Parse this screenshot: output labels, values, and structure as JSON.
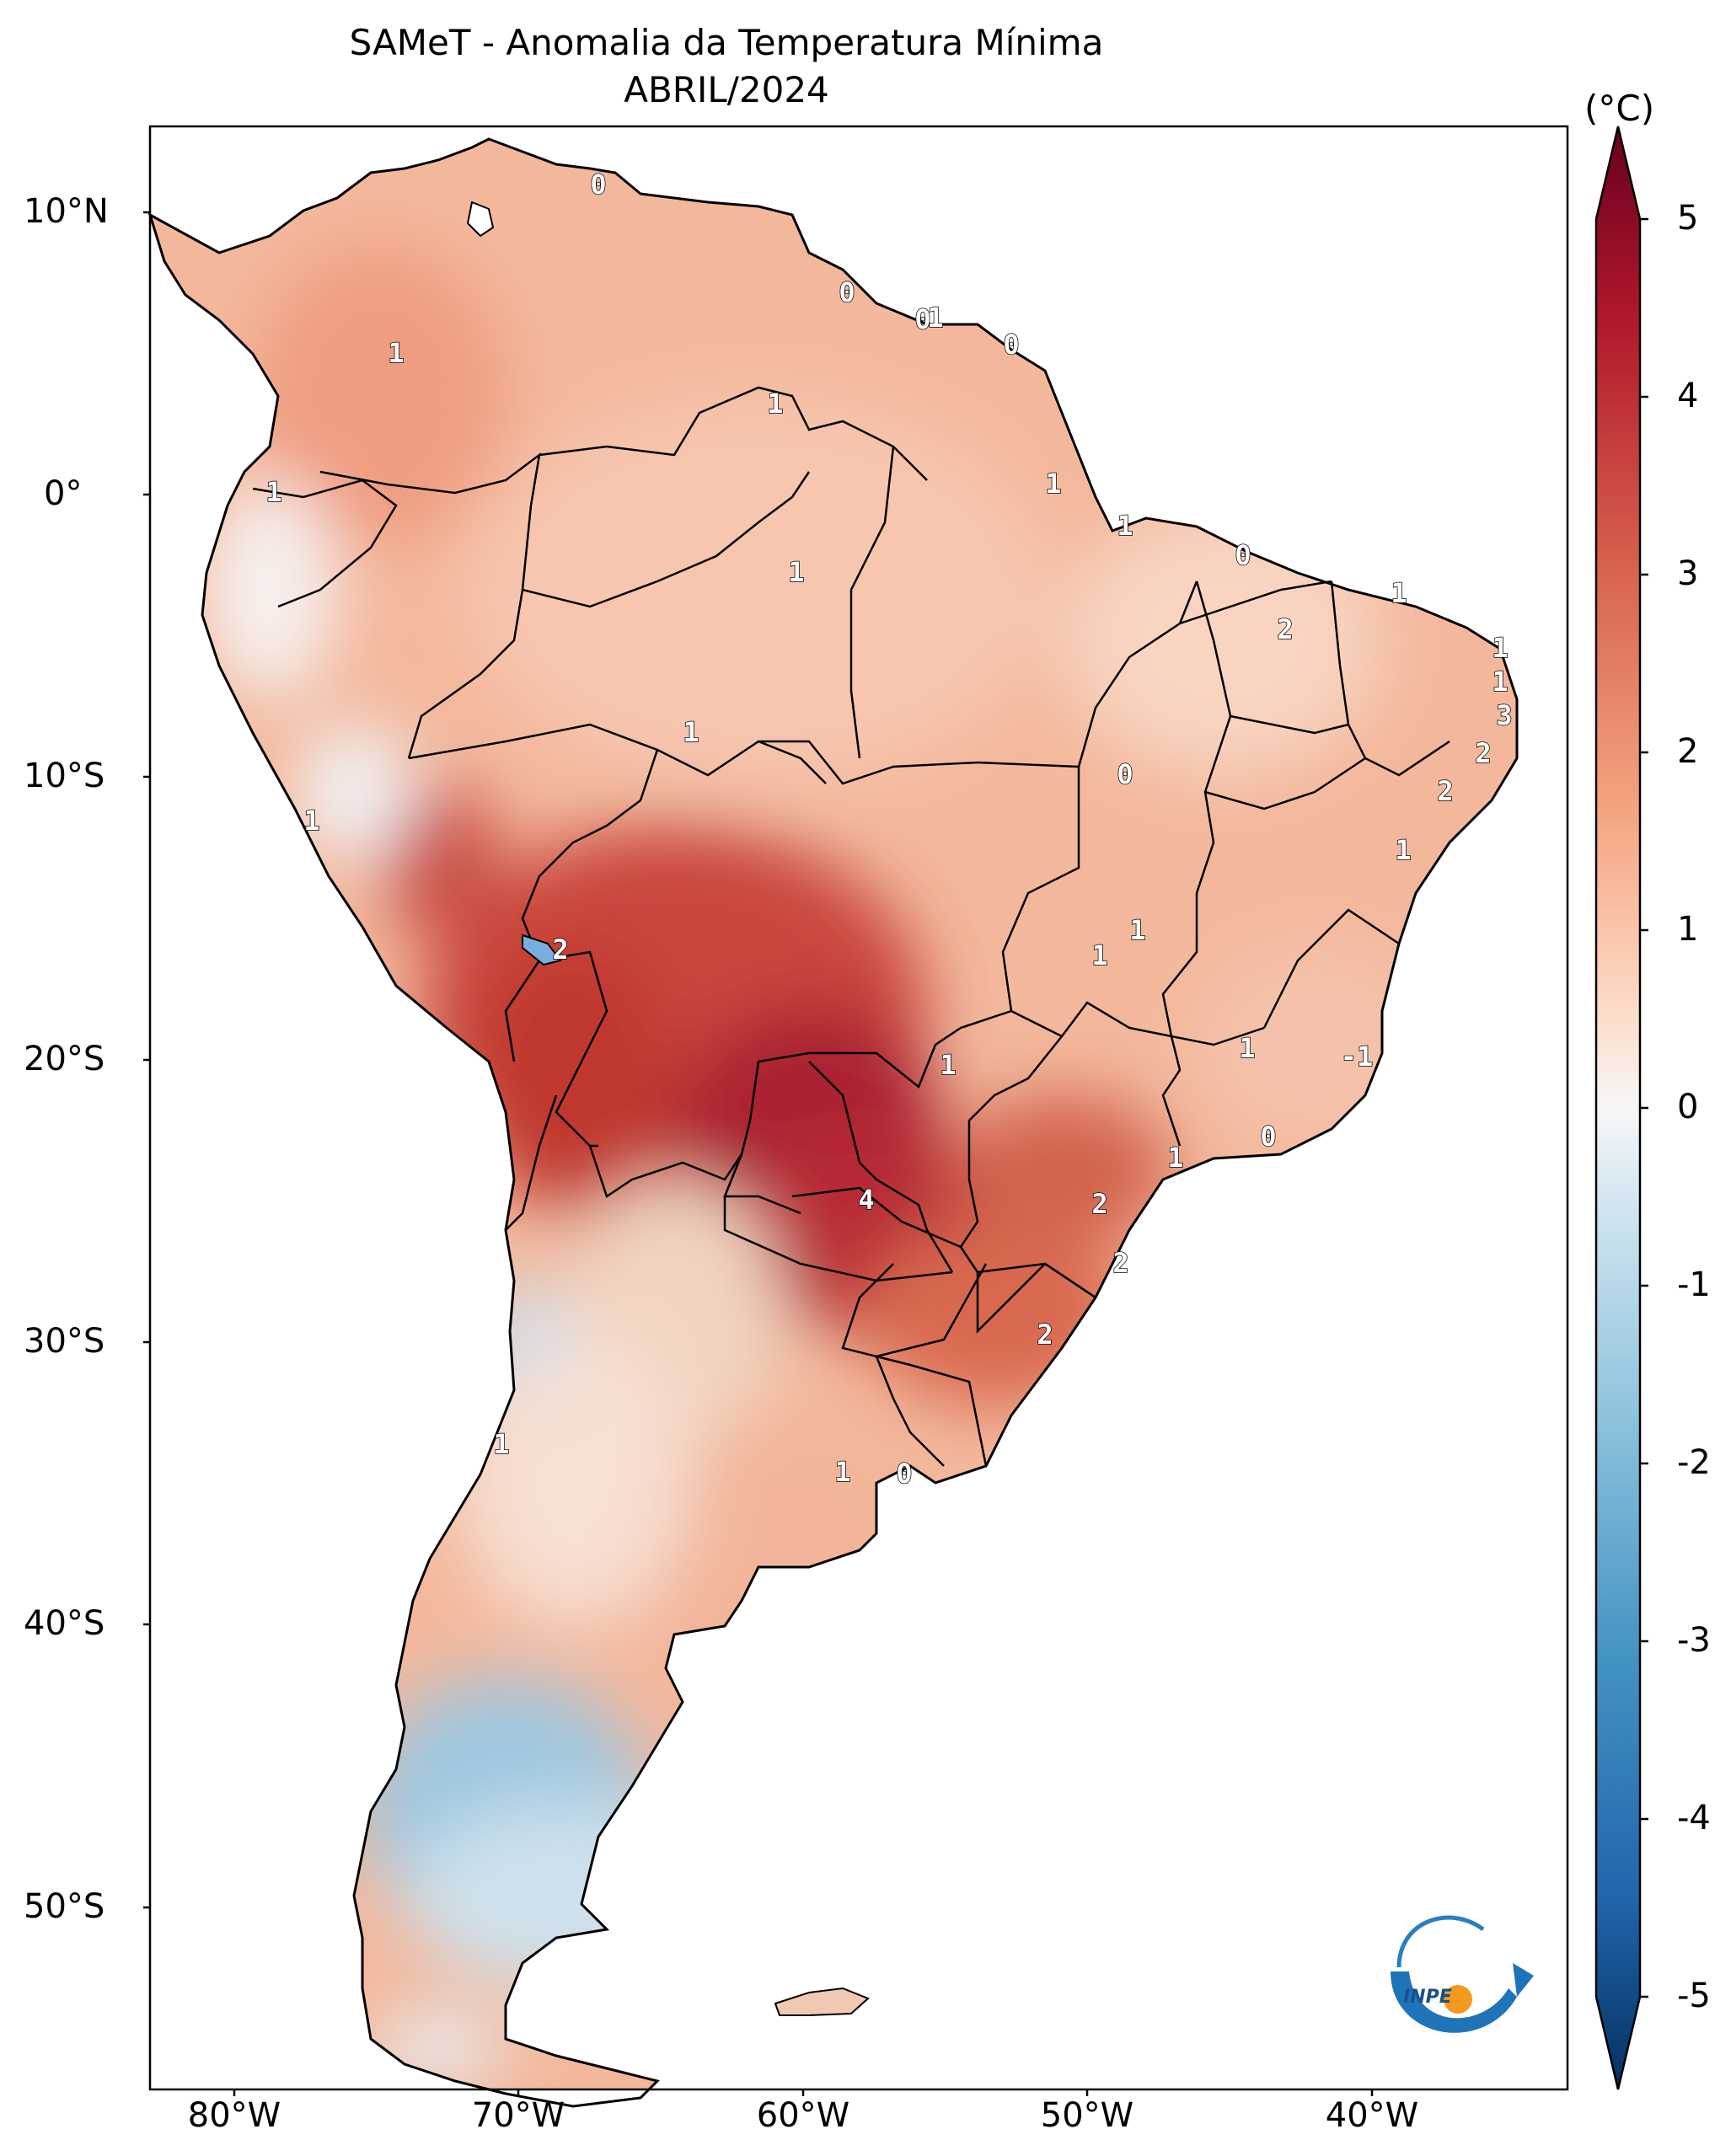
{
  "title": {
    "line1": "SAMeT - Anomalia da Temperatura Mínima",
    "line2": "ABRIL/2024"
  },
  "colorbar": {
    "unit": "(°C)",
    "ticks": [
      "5",
      "4",
      "3",
      "2",
      "1",
      "0",
      "-1",
      "-2",
      "-3",
      "-4",
      "-5"
    ],
    "range": [
      -5,
      5
    ],
    "colors": {
      "max": "#67001f",
      "hot": "#b2182b",
      "warm": "#d6604d",
      "mild": "#f4a582",
      "light_warm": "#fddbc7",
      "neutral": "#f7f7f7",
      "light_cool": "#d1e5f0",
      "mild_cool": "#92c5de",
      "cool": "#4393c3",
      "cold": "#2166ac",
      "min": "#053061"
    }
  },
  "axes": {
    "lat_labels": [
      "10°N",
      "0°",
      "10°S",
      "20°S",
      "30°S",
      "40°S",
      "50°S"
    ],
    "lon_labels": [
      "80°W",
      "70°W",
      "60°W",
      "50°W",
      "40°W"
    ]
  },
  "contour_labels": [
    "0",
    "1",
    "0",
    "0",
    "0",
    "1",
    "1",
    "1",
    "1",
    "1",
    "0",
    "1",
    "2",
    "1",
    "1",
    "3",
    "1",
    "1",
    "2",
    "2",
    "1",
    "0",
    "1",
    "1",
    "2",
    "1",
    "1",
    "1",
    "-1",
    "0",
    "1",
    "2",
    "4",
    "2",
    "2",
    "1",
    "0",
    "1"
  ],
  "logo": {
    "text": "INPE",
    "icon": "inpe-logo-icon"
  }
}
